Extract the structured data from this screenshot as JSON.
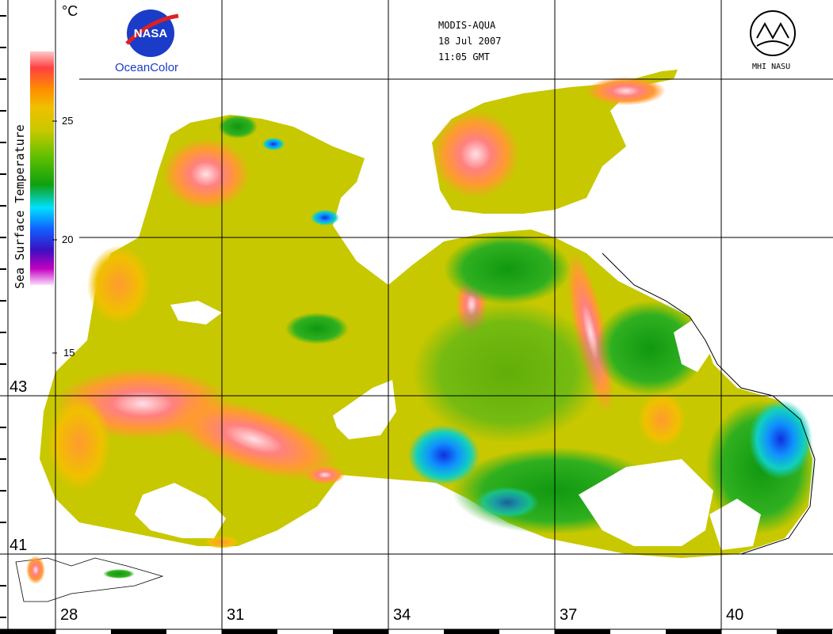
{
  "header": {
    "satellite": "MODIS-AQUA",
    "date": "18 Jul 2007",
    "time": "11:05 GMT"
  },
  "logos": {
    "nasa_badge": "NASA",
    "nasa_product": "OceanColor",
    "institute": "MHI NASU"
  },
  "color_scale": {
    "title": "Sea Surface Temperature",
    "unit": "°C",
    "ticks": [
      "25",
      "20",
      "15"
    ],
    "range": [
      15,
      28
    ],
    "colors": [
      "#ffd9ff",
      "#c000c0",
      "#3a10c0",
      "#1060ff",
      "#00e0ff",
      "#10a010",
      "#60c000",
      "#c8c800",
      "#f0c000",
      "#ff8c00",
      "#ff4040",
      "#ffc8c8"
    ]
  },
  "lat_labels": [
    "43",
    "41"
  ],
  "lon_labels": [
    "28",
    "31",
    "34",
    "37",
    "40"
  ],
  "colors": {
    "warm": "#ff7070",
    "mid": "#c8c800",
    "cool": "#10a010",
    "cold": "#1070ff",
    "land": "#ffffff",
    "cloud": "#ffffff"
  }
}
